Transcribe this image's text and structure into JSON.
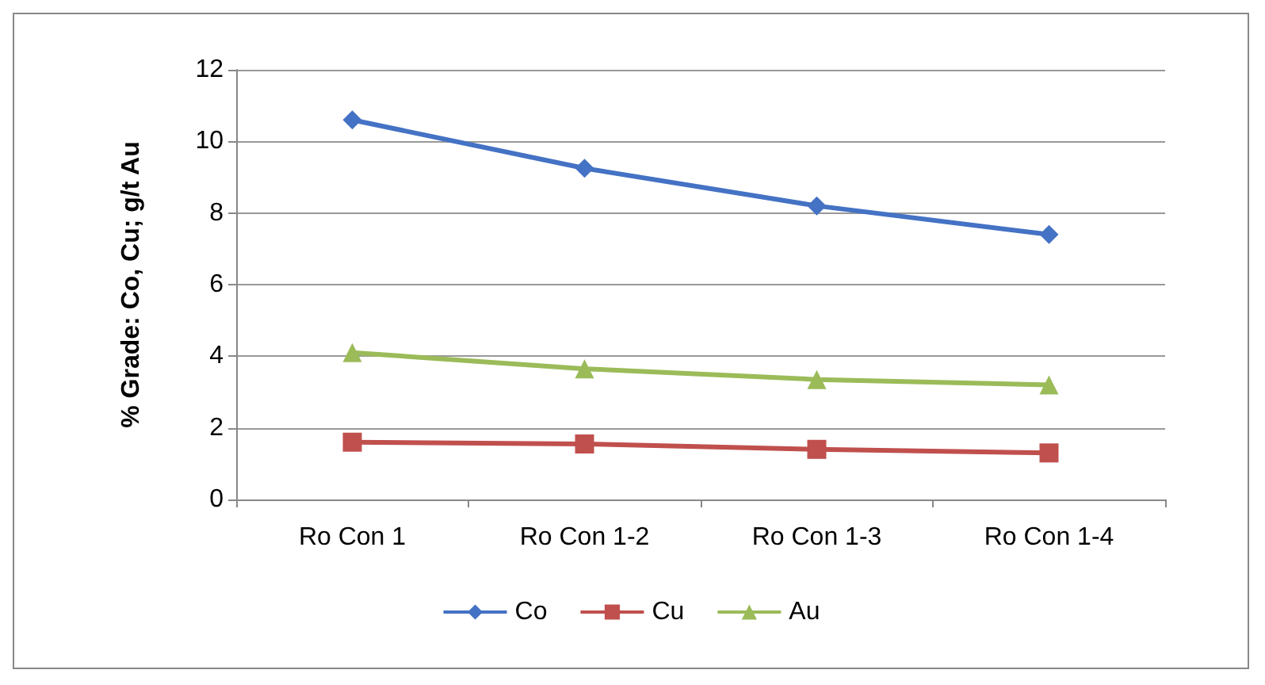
{
  "chart_data": {
    "type": "line",
    "ylabel": "% Grade: Co, Cu; g/t Au",
    "categories": [
      "Ro Con 1",
      "Ro Con 1-2",
      "Ro Con 1-3",
      "Ro Con 1-4"
    ],
    "series": [
      {
        "name": "Co",
        "color": "#4472c4",
        "marker": "diamond",
        "values": [
          10.6,
          9.25,
          8.2,
          7.4
        ]
      },
      {
        "name": "Cu",
        "color": "#c0504d",
        "marker": "square",
        "values": [
          1.6,
          1.55,
          1.4,
          1.3
        ]
      },
      {
        "name": "Au",
        "color": "#9bbb59",
        "marker": "triangle",
        "values": [
          4.1,
          3.65,
          3.35,
          3.2
        ]
      }
    ],
    "ylim": [
      0,
      12
    ],
    "yticks": [
      0,
      2,
      4,
      6,
      8,
      10,
      12
    ],
    "grid": "y",
    "legend": "bottom",
    "line_style": "solid"
  }
}
